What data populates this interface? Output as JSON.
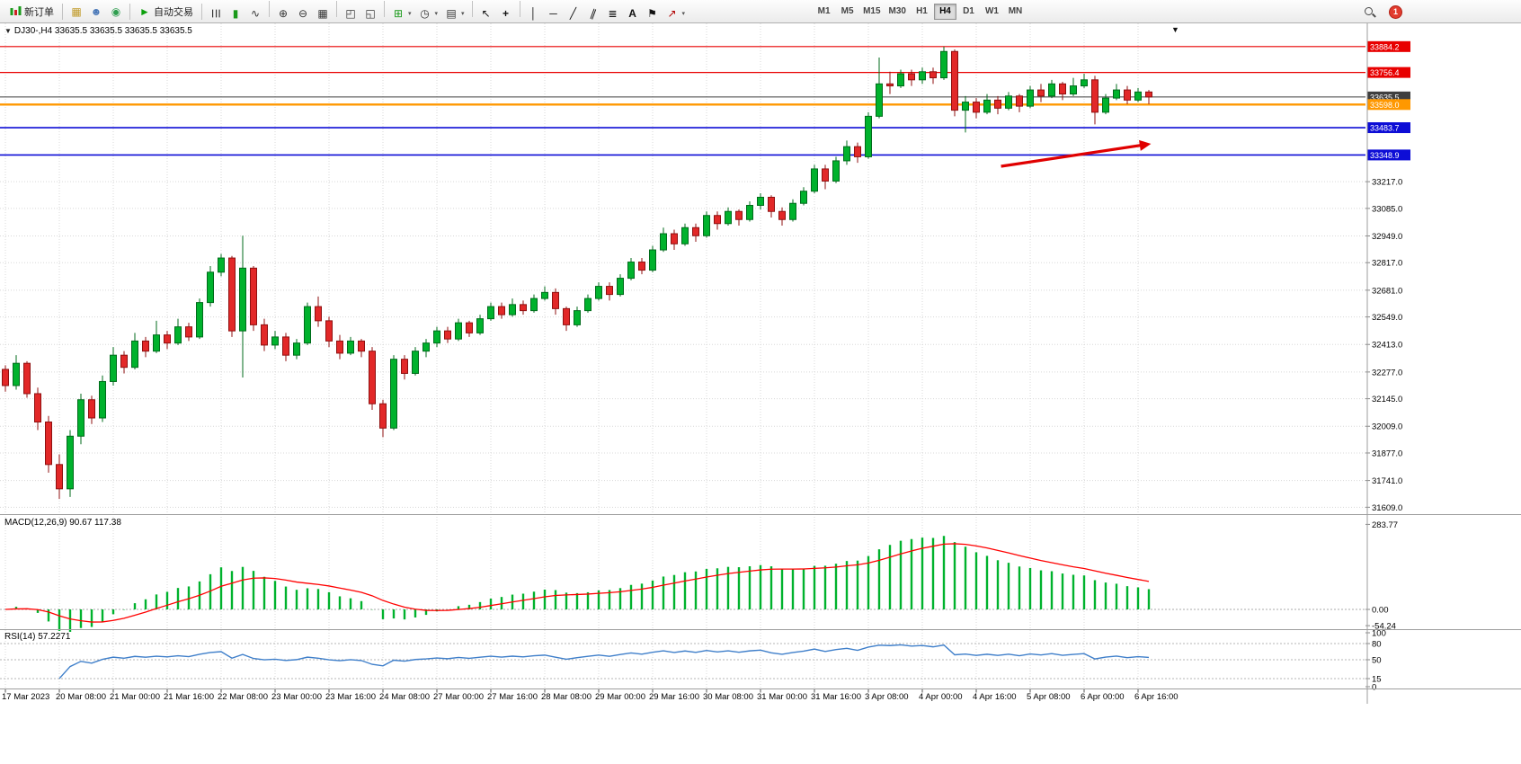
{
  "toolbar": {
    "new_order_label": "新订单",
    "auto_trading_label": "自动交易",
    "badge_count": "1",
    "timeframes": [
      "M1",
      "M5",
      "M15",
      "M30",
      "H1",
      "H4",
      "D1",
      "W1",
      "MN"
    ],
    "active_timeframe": "H4",
    "icon_groups": [
      [
        "layouts-icon",
        "profile-icon",
        "community-icon"
      ],
      [
        "bars-chart-icon",
        "candles-chart-icon",
        "line-chart-icon"
      ],
      [
        "zoom-in-icon",
        "zoom-out-icon",
        "tile-windows-icon"
      ],
      [
        "cascade-windows-icon",
        "arrange-windows-icon"
      ],
      [
        "new-chart-icon",
        "periods-icon",
        "templates-icon"
      ],
      [
        "cursor-icon",
        "crosshair-icon"
      ],
      [
        "vertical-line-icon",
        "horizontal-line-icon",
        "trendline-icon",
        "channel-icon",
        "fibonacci-icon",
        "text-icon",
        "label-icon",
        "arrows-icon"
      ]
    ]
  },
  "chart": {
    "title": "DJ30-,H4 33635.5 33635.5 33635.5 33635.5",
    "macd_label": "MACD(12,26,9) 90.67 117.38",
    "rsi_label": "RSI(14) 57.2271",
    "dropdown_glyph": "▼"
  },
  "chart_data": {
    "type": "candlestick",
    "symbol": "DJ30-",
    "timeframe": "H4",
    "current_ohlc": {
      "open": 33635.5,
      "high": 33635.5,
      "low": 33635.5,
      "close": 33635.5
    },
    "price_range": [
      31575,
      33990
    ],
    "price_ticks": [
      33217.0,
      33085.0,
      32949.0,
      32817.0,
      32681.0,
      32549.0,
      32413.0,
      32277.0,
      32145.0,
      32009.0,
      31877.0,
      31741.0,
      31609.0
    ],
    "levels": [
      {
        "price": 33884.2,
        "label": "33884.2",
        "color": "#e80000",
        "width": 1.2
      },
      {
        "price": 33756.4,
        "label": "33756.4",
        "color": "#e80000",
        "width": 1.2
      },
      {
        "price": 33635.5,
        "label": "33635.5",
        "color": "#3f3f3f",
        "width": 1,
        "role": "bid"
      },
      {
        "price": 33598.0,
        "label": "33598.0",
        "color": "#ff9800",
        "width": 2.4
      },
      {
        "price": 33483.7,
        "label": "33483.7",
        "color": "#0d0dd6",
        "width": 1.6
      },
      {
        "price": 33348.9,
        "label": "33348.9",
        "color": "#0d0dd6",
        "width": 1.6
      }
    ],
    "x_labels": [
      {
        "i": 0,
        "label": "17 Mar 2023"
      },
      {
        "i": 5,
        "label": "20 Mar 08:00"
      },
      {
        "i": 10,
        "label": "21 Mar 00:00"
      },
      {
        "i": 15,
        "label": "21 Mar 16:00"
      },
      {
        "i": 20,
        "label": "22 Mar 08:00"
      },
      {
        "i": 25,
        "label": "23 Mar 00:00"
      },
      {
        "i": 30,
        "label": "23 Mar 16:00"
      },
      {
        "i": 35,
        "label": "24 Mar 08:00"
      },
      {
        "i": 40,
        "label": "27 Mar 00:00"
      },
      {
        "i": 45,
        "label": "27 Mar 16:00"
      },
      {
        "i": 50,
        "label": "28 Mar 08:00"
      },
      {
        "i": 55,
        "label": "29 Mar 00:00"
      },
      {
        "i": 60,
        "label": "29 Mar 16:00"
      },
      {
        "i": 65,
        "label": "30 Mar 08:00"
      },
      {
        "i": 70,
        "label": "31 Mar 00:00"
      },
      {
        "i": 75,
        "label": "31 Mar 16:00"
      },
      {
        "i": 80,
        "label": "3 Apr 08:00"
      },
      {
        "i": 85,
        "label": "4 Apr 00:00"
      },
      {
        "i": 90,
        "label": "4 Apr 16:00"
      },
      {
        "i": 95,
        "label": "5 Apr 08:00"
      },
      {
        "i": 100,
        "label": "6 Apr 00:00"
      },
      {
        "i": 105,
        "label": "6 Apr 16:00"
      }
    ],
    "candles": [
      [
        32290,
        32310,
        32180,
        32210
      ],
      [
        32210,
        32360,
        32190,
        32320
      ],
      [
        32320,
        32330,
        32150,
        32170
      ],
      [
        32170,
        32200,
        31990,
        32030
      ],
      [
        32030,
        32060,
        31780,
        31820
      ],
      [
        31820,
        31870,
        31650,
        31700
      ],
      [
        31700,
        31990,
        31660,
        31960
      ],
      [
        31960,
        32170,
        31920,
        32140
      ],
      [
        32140,
        32160,
        32020,
        32050
      ],
      [
        32050,
        32260,
        32030,
        32230
      ],
      [
        32230,
        32400,
        32210,
        32360
      ],
      [
        32360,
        32380,
        32270,
        32300
      ],
      [
        32300,
        32470,
        32290,
        32430
      ],
      [
        32430,
        32450,
        32350,
        32380
      ],
      [
        32380,
        32530,
        32370,
        32460
      ],
      [
        32460,
        32480,
        32390,
        32420
      ],
      [
        32420,
        32540,
        32410,
        32500
      ],
      [
        32500,
        32520,
        32430,
        32450
      ],
      [
        32450,
        32640,
        32440,
        32620
      ],
      [
        32620,
        32800,
        32600,
        32770
      ],
      [
        32770,
        32860,
        32750,
        32840
      ],
      [
        32840,
        32850,
        32450,
        32480
      ],
      [
        32480,
        32950,
        32250,
        32790
      ],
      [
        32790,
        32800,
        32480,
        32510
      ],
      [
        32510,
        32540,
        32380,
        32410
      ],
      [
        32410,
        32480,
        32390,
        32450
      ],
      [
        32450,
        32470,
        32330,
        32360
      ],
      [
        32360,
        32440,
        32340,
        32420
      ],
      [
        32420,
        32620,
        32410,
        32600
      ],
      [
        32600,
        32650,
        32500,
        32530
      ],
      [
        32530,
        32550,
        32400,
        32430
      ],
      [
        32430,
        32460,
        32340,
        32370
      ],
      [
        32370,
        32450,
        32360,
        32430
      ],
      [
        32430,
        32440,
        32350,
        32380
      ],
      [
        32380,
        32400,
        32090,
        32120
      ],
      [
        32120,
        32140,
        31955,
        32000
      ],
      [
        32000,
        32360,
        31990,
        32340
      ],
      [
        32340,
        32360,
        32240,
        32270
      ],
      [
        32270,
        32400,
        32260,
        32380
      ],
      [
        32380,
        32440,
        32350,
        32420
      ],
      [
        32420,
        32500,
        32400,
        32480
      ],
      [
        32480,
        32500,
        32420,
        32440
      ],
      [
        32440,
        32540,
        32430,
        32520
      ],
      [
        32520,
        32530,
        32450,
        32470
      ],
      [
        32470,
        32560,
        32460,
        32540
      ],
      [
        32540,
        32620,
        32530,
        32600
      ],
      [
        32600,
        32620,
        32540,
        32560
      ],
      [
        32560,
        32640,
        32550,
        32610
      ],
      [
        32610,
        32630,
        32560,
        32580
      ],
      [
        32580,
        32660,
        32570,
        32640
      ],
      [
        32640,
        32700,
        32630,
        32670
      ],
      [
        32670,
        32690,
        32560,
        32590
      ],
      [
        32590,
        32600,
        32480,
        32510
      ],
      [
        32510,
        32600,
        32500,
        32580
      ],
      [
        32580,
        32660,
        32570,
        32640
      ],
      [
        32640,
        32720,
        32630,
        32700
      ],
      [
        32700,
        32720,
        32630,
        32660
      ],
      [
        32660,
        32760,
        32650,
        32740
      ],
      [
        32740,
        32840,
        32730,
        32820
      ],
      [
        32820,
        32840,
        32760,
        32780
      ],
      [
        32780,
        32900,
        32770,
        32880
      ],
      [
        32880,
        32990,
        32870,
        32960
      ],
      [
        32960,
        32980,
        32880,
        32910
      ],
      [
        32910,
        33010,
        32900,
        32990
      ],
      [
        32990,
        33010,
        32920,
        32950
      ],
      [
        32950,
        33070,
        32940,
        33050
      ],
      [
        33050,
        33070,
        32980,
        33010
      ],
      [
        33010,
        33090,
        33000,
        33070
      ],
      [
        33070,
        33080,
        33000,
        33030
      ],
      [
        33030,
        33120,
        33020,
        33100
      ],
      [
        33100,
        33160,
        33080,
        33140
      ],
      [
        33140,
        33150,
        33040,
        33070
      ],
      [
        33070,
        33090,
        33000,
        33030
      ],
      [
        33030,
        33130,
        33020,
        33110
      ],
      [
        33110,
        33190,
        33100,
        33170
      ],
      [
        33170,
        33300,
        33160,
        33280
      ],
      [
        33280,
        33300,
        33180,
        33220
      ],
      [
        33220,
        33340,
        33210,
        33320
      ],
      [
        33320,
        33420,
        33300,
        33390
      ],
      [
        33390,
        33410,
        33310,
        33340
      ],
      [
        33340,
        33560,
        33330,
        33540
      ],
      [
        33540,
        33830,
        33530,
        33700
      ],
      [
        33700,
        33760,
        33650,
        33690
      ],
      [
        33690,
        33770,
        33680,
        33750
      ],
      [
        33750,
        33770,
        33690,
        33720
      ],
      [
        33720,
        33780,
        33700,
        33760
      ],
      [
        33760,
        33780,
        33700,
        33730
      ],
      [
        33730,
        33884.2,
        33720,
        33860
      ],
      [
        33860,
        33870,
        33540,
        33570
      ],
      [
        33570,
        33640,
        33460,
        33610
      ],
      [
        33610,
        33630,
        33530,
        33560
      ],
      [
        33560,
        33650,
        33550,
        33620
      ],
      [
        33620,
        33640,
        33550,
        33580
      ],
      [
        33580,
        33660,
        33570,
        33640
      ],
      [
        33640,
        33650,
        33560,
        33590
      ],
      [
        33590,
        33690,
        33580,
        33670
      ],
      [
        33670,
        33700,
        33610,
        33640
      ],
      [
        33640,
        33720,
        33630,
        33700
      ],
      [
        33700,
        33710,
        33620,
        33650
      ],
      [
        33650,
        33730,
        33640,
        33690
      ],
      [
        33690,
        33750,
        33680,
        33720
      ],
      [
        33720,
        33740,
        33500,
        33560
      ],
      [
        33560,
        33650,
        33550,
        33630
      ],
      [
        33630,
        33700,
        33620,
        33670
      ],
      [
        33670,
        33690,
        33600,
        33620
      ],
      [
        33620,
        33680,
        33610,
        33660
      ],
      [
        33660,
        33670,
        33600,
        33635.5
      ]
    ],
    "macd": {
      "params": "12,26,9",
      "value": 90.67,
      "signal_value": 117.38,
      "range": [
        -60,
        300
      ],
      "axis": [
        {
          "v": 283.77,
          "label": "283.77"
        },
        {
          "v": 0,
          "label": "0.00"
        },
        {
          "v": -54.24,
          "label": "-54.24"
        }
      ]
    },
    "rsi": {
      "period": 14,
      "value": 57.2271,
      "range": [
        0,
        100
      ],
      "levels": [
        80,
        50,
        15
      ],
      "axis": [
        {
          "v": 100,
          "label": "100"
        },
        {
          "v": 80,
          "label": "80"
        },
        {
          "v": 50,
          "label": "50"
        },
        {
          "v": 15,
          "label": "15"
        },
        {
          "v": 0,
          "label": "0"
        }
      ]
    },
    "arrow": {
      "from": {
        "i": 92.3,
        "p": 33293
      },
      "to": {
        "i": 106.2,
        "p": 33404
      },
      "color": "#e00000"
    },
    "colors": {
      "up": "#00b22d",
      "up_border": "#006b1b",
      "down": "#e22828",
      "down_border": "#8f1010",
      "macd_hist": "#00b22d",
      "macd_signal": "#ff0000",
      "rsi_line": "#3f7fca",
      "grid": "#d8d8d8"
    }
  }
}
